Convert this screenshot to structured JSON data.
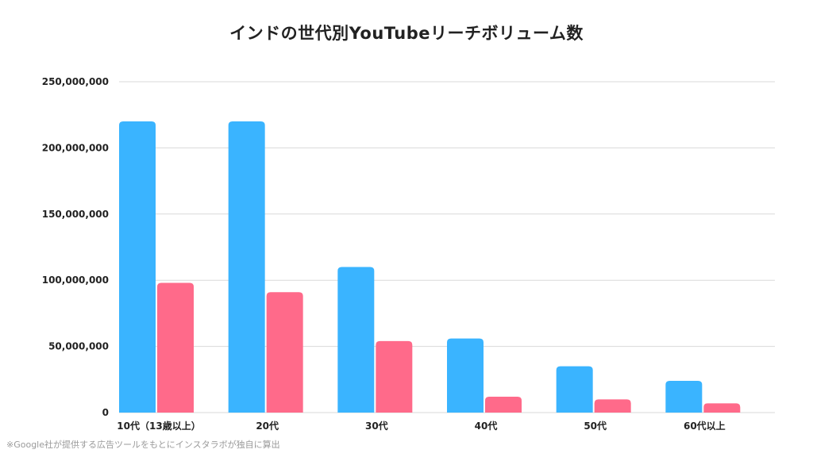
{
  "footnote": "※Google社が提供する広告ツールをもとにインスタラボが独自に算出",
  "colors": {
    "series1": "#3ab4ff",
    "series2": "#ff6a8a",
    "grid": "#d9d9d9"
  },
  "chart_data": {
    "type": "bar",
    "title": "インドの世代別YouTubeリーチボリューム数",
    "xlabel": "",
    "ylabel": "",
    "categories": [
      "10代（13歳以上）",
      "20代",
      "30代",
      "40代",
      "50代",
      "60代以上"
    ],
    "series": [
      {
        "values": [
          220000000,
          220000000,
          110000000,
          56000000,
          35000000,
          24000000
        ]
      },
      {
        "values": [
          98000000,
          91000000,
          54000000,
          12000000,
          10000000,
          7000000
        ]
      }
    ],
    "ylim": [
      0,
      250000000
    ],
    "yticks": [
      {
        "value": 0,
        "label": "0"
      },
      {
        "value": 50000000,
        "label": "50,000,000"
      },
      {
        "value": 100000000,
        "label": "100,000,000"
      },
      {
        "value": 150000000,
        "label": "150,000,000"
      },
      {
        "value": 200000000,
        "label": "200,000,000"
      },
      {
        "value": 250000000,
        "label": "250,000,000"
      }
    ],
    "grid": true,
    "legend": "none"
  }
}
